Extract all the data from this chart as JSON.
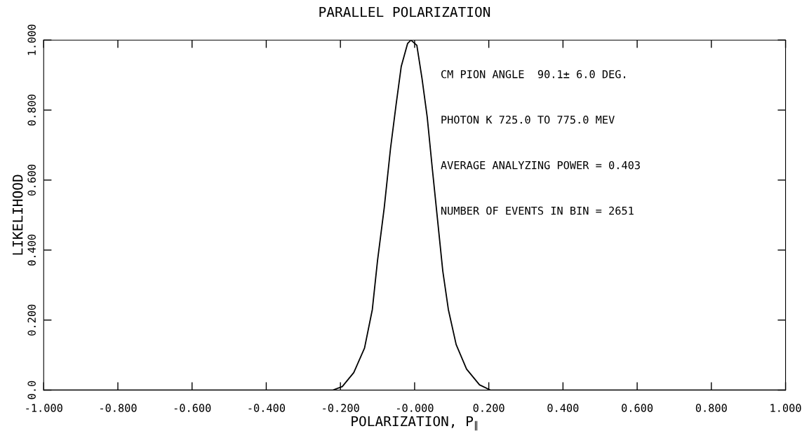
{
  "chart_data": {
    "type": "line",
    "title": "PARALLEL POLARIZATION",
    "xlabel": "POLARIZATION, P$_{∥}$",
    "ylabel": "LIKELIHOOD",
    "x": [
      -1.0,
      -0.22,
      -0.195,
      -0.164,
      -0.135,
      -0.114,
      -0.1,
      -0.082,
      -0.065,
      -0.05,
      -0.036,
      -0.019,
      -0.01,
      0.006,
      0.02,
      0.034,
      0.048,
      0.062,
      0.076,
      0.091,
      0.112,
      0.14,
      0.175,
      0.204,
      1.0
    ],
    "series": [
      {
        "color": "#000000",
        "values": [
          0.0,
          0.0,
          0.01,
          0.05,
          0.12,
          0.23,
          0.37,
          0.52,
          0.69,
          0.815,
          0.925,
          0.99,
          1.0,
          0.985,
          0.89,
          0.78,
          0.63,
          0.485,
          0.34,
          0.23,
          0.13,
          0.06,
          0.015,
          0.0,
          0.0
        ]
      }
    ],
    "xlim": [
      -1.0,
      1.0
    ],
    "ylim": [
      0.0,
      1.0
    ],
    "xticks": [
      {
        "value": -1.0,
        "label": "-1.000"
      },
      {
        "value": -0.8,
        "label": "-0.800"
      },
      {
        "value": -0.6,
        "label": "-0.600"
      },
      {
        "value": -0.4,
        "label": "-0.400"
      },
      {
        "value": -0.2,
        "label": "-0.200"
      },
      {
        "value": 0,
        "label": "-0.000"
      },
      {
        "value": 0.2,
        "label": "0.200"
      },
      {
        "value": 0.4,
        "label": "0.400"
      },
      {
        "value": 0.6,
        "label": "0.600"
      },
      {
        "value": 0.8,
        "label": "0.800"
      },
      {
        "value": 1.0,
        "label": "1.000"
      }
    ],
    "yticks": [
      {
        "value": 0,
        "label": "0.0"
      },
      {
        "value": 0.2,
        "label": "0.200"
      },
      {
        "value": 0.4,
        "label": "0.400"
      },
      {
        "value": 0.6,
        "label": "0.600"
      },
      {
        "value": 0.8,
        "label": "0.800"
      },
      {
        "value": 1.0,
        "label": "1.000"
      }
    ],
    "annotations": [
      "CM PION ANGLE  90.1± 6.0 DEG.",
      "PHOTON K 725.0 TO 775.0 MEV",
      "AVERAGE ANALYZING POWER = 0.403",
      "NUMBER OF EVENTS IN BIN = 2651"
    ],
    "grid": false,
    "legend": false,
    "marker": "none",
    "line_style": "solid"
  }
}
